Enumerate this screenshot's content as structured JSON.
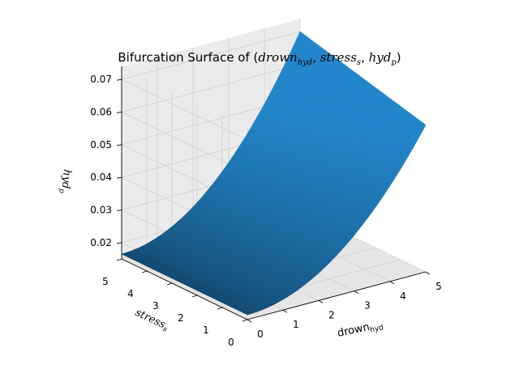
{
  "title": {
    "prefix": "Bifurcation Surface of (",
    "v1": "drown",
    "v1_sub": "hyd",
    "v2": "stress",
    "v2_sub": "s",
    "v3": "hyd",
    "v3_sub": "p",
    "suffix": ")"
  },
  "chart_data": {
    "type": "surface",
    "grid": true,
    "surface_color": "#1f77b4",
    "x_axis": {
      "label_main": "drown",
      "label_sub": "hyd",
      "range": [
        0,
        5
      ],
      "ticks": [
        "0",
        "1",
        "2",
        "3",
        "4",
        "5"
      ]
    },
    "y_axis": {
      "label_main": "stress",
      "label_sub": "s",
      "range": [
        0,
        5
      ],
      "ticks": [
        "0",
        "1",
        "2",
        "3",
        "4",
        "5"
      ]
    },
    "z_axis": {
      "label_main": "hyd",
      "label_sub": "p",
      "range": [
        0.015,
        0.074
      ],
      "ticks": [
        "0.02",
        "0.03",
        "0.04",
        "0.05",
        "0.06",
        "0.07"
      ]
    },
    "surface_samples": [
      {
        "x": 0,
        "y": 0,
        "z": 0.0165
      },
      {
        "x": 0,
        "y": 5,
        "z": 0.0165
      },
      {
        "x": 5,
        "y": 0,
        "z": 0.06
      },
      {
        "x": 5,
        "y": 5,
        "z": 0.07
      },
      {
        "x": 2.5,
        "y": 2.5,
        "z": 0.029
      }
    ]
  }
}
